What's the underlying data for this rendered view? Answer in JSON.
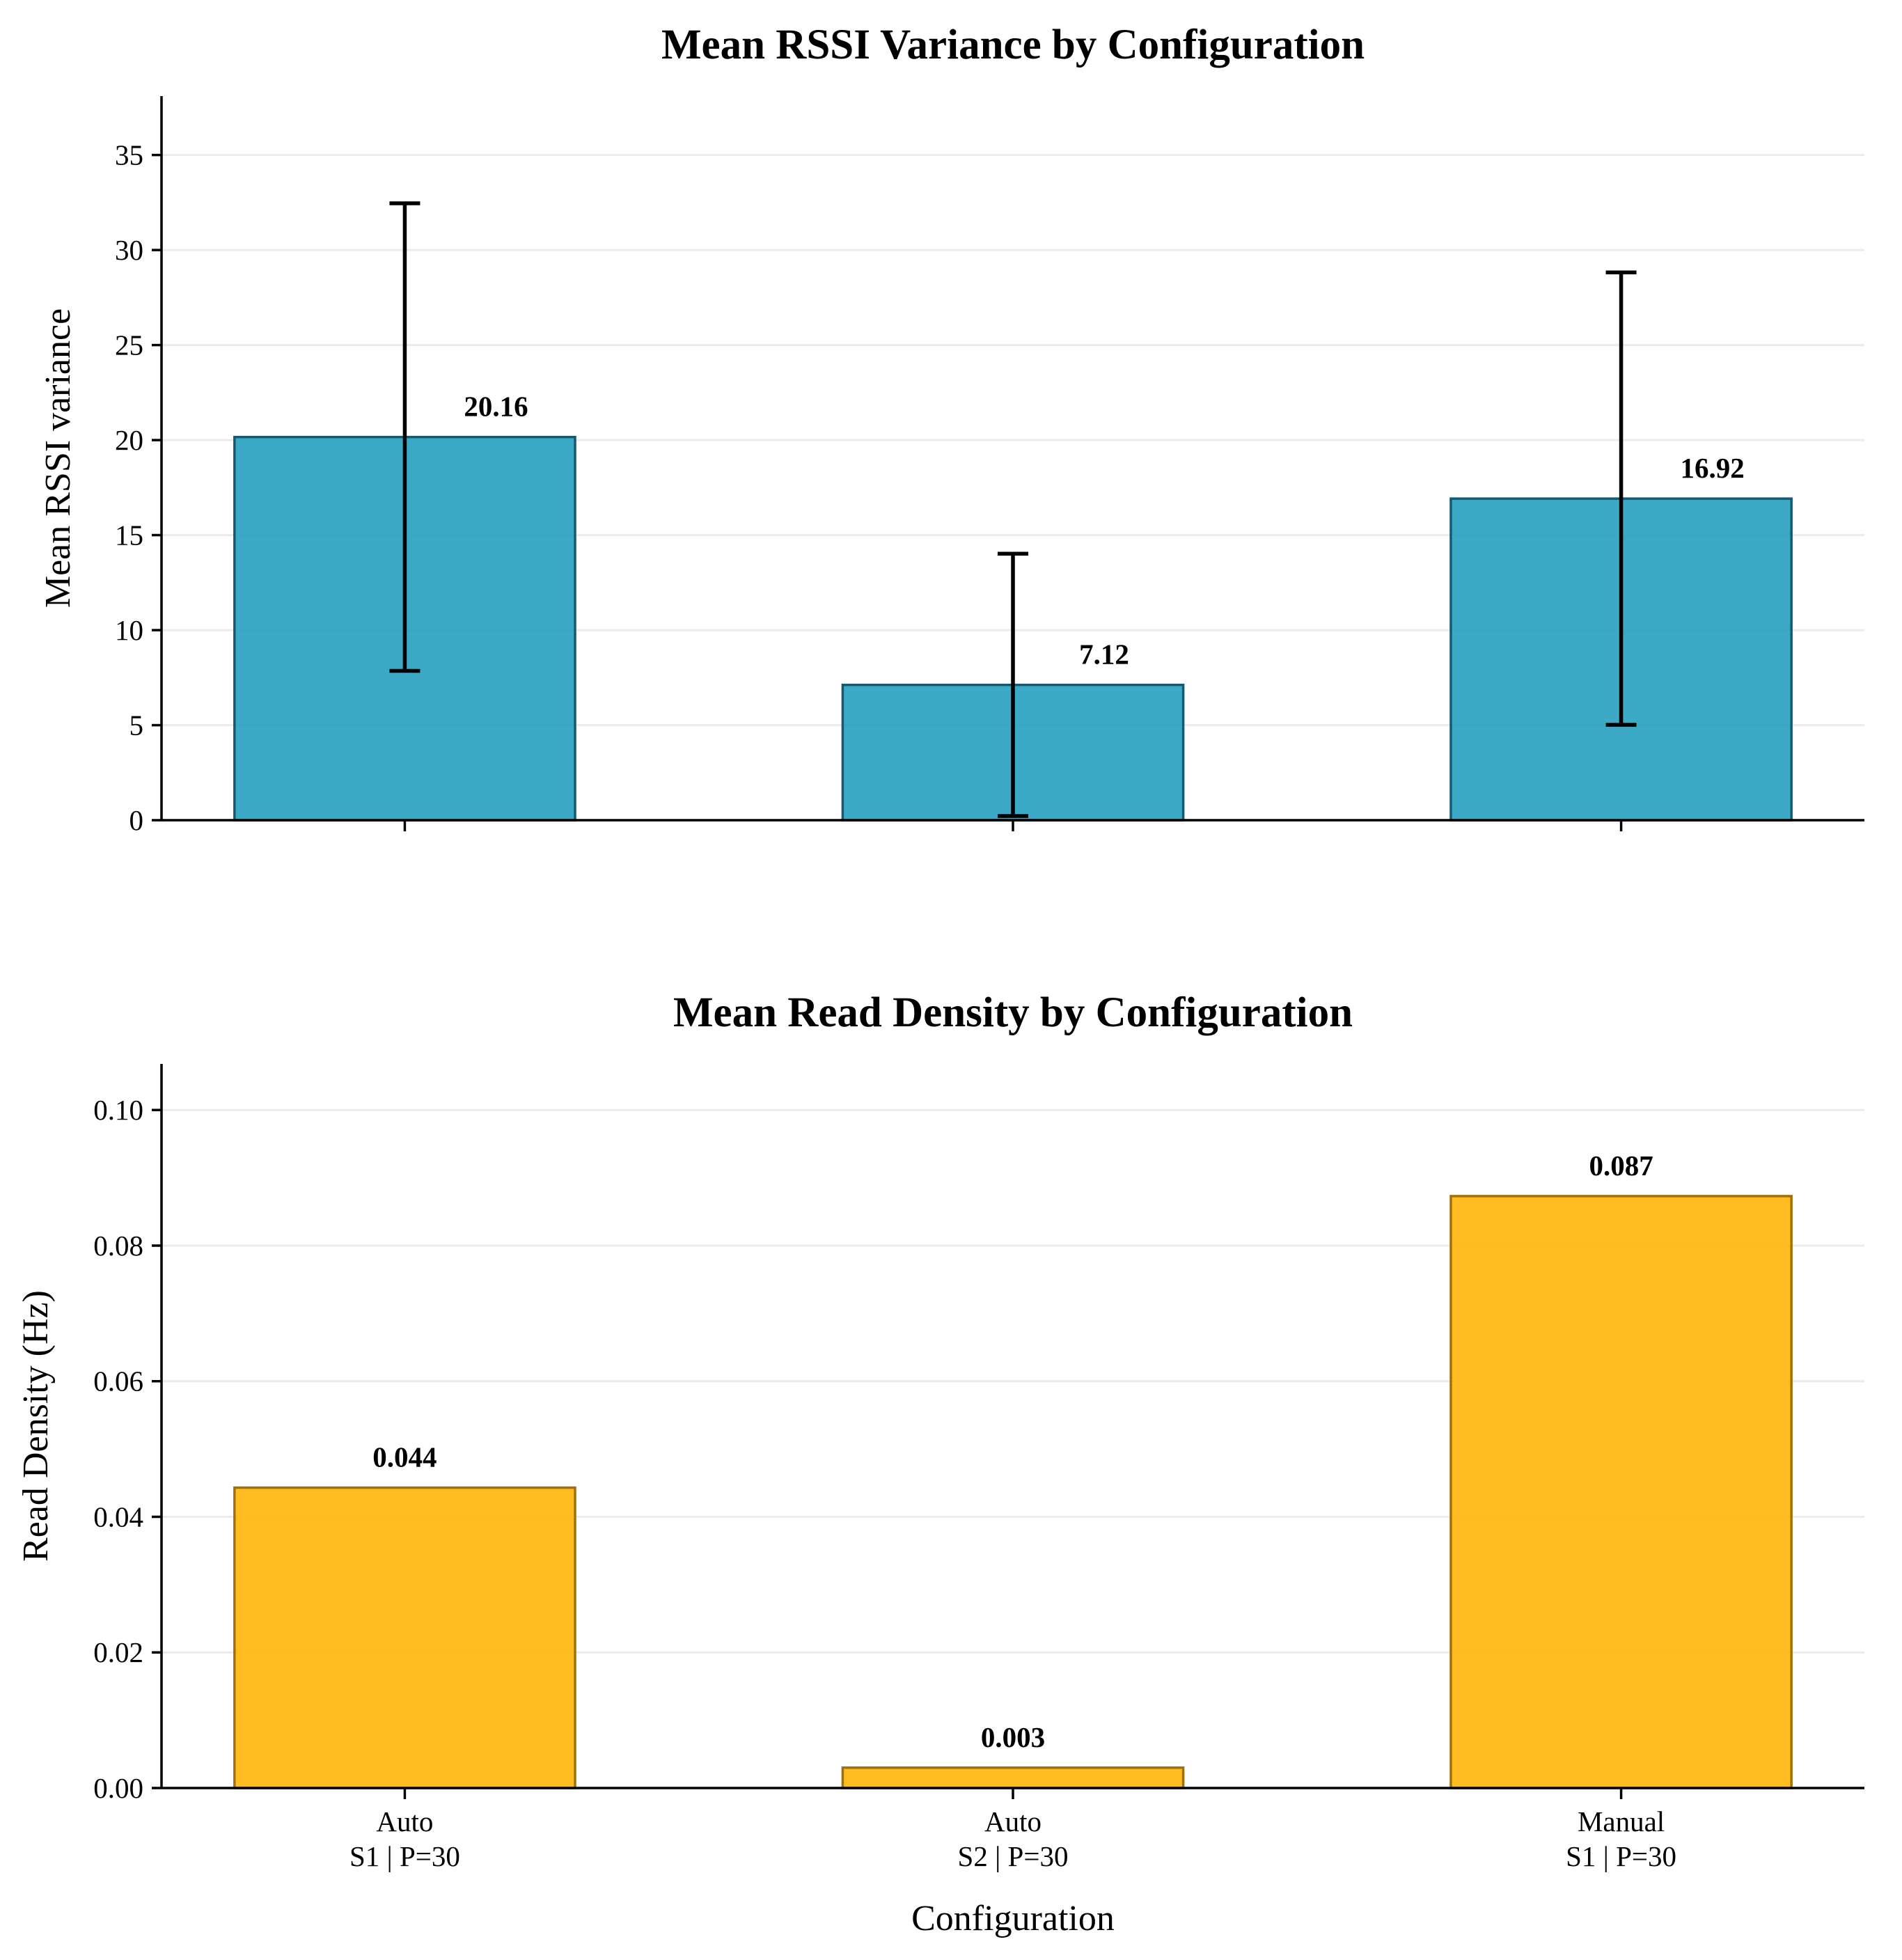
{
  "chart_data": [
    {
      "type": "bar",
      "title": "Mean RSSI Variance by Configuration",
      "xlabel": "",
      "ylabel": "Mean RSSI variance",
      "categories": [
        "Auto\nS1 | P=30",
        "Auto\nS2 | P=30",
        "Manual\nS1 | P=30"
      ],
      "show_category_labels": false,
      "values": [
        20.16,
        7.12,
        16.92
      ],
      "value_labels": [
        "20.16",
        "7.12",
        "16.92"
      ],
      "error": [
        12.3,
        6.9,
        11.9
      ],
      "ylim": [
        0,
        38.1
      ],
      "yticks": [
        0,
        5,
        10,
        15,
        20,
        25,
        30,
        35
      ],
      "ytick_labels": [
        "0",
        "5",
        "10",
        "15",
        "20",
        "25",
        "30",
        "35"
      ],
      "grid": true,
      "colors": {
        "fill": "#1f9dbd",
        "edge": "#155a70"
      }
    },
    {
      "type": "bar",
      "title": "Mean Read Density by Configuration",
      "xlabel": "Configuration",
      "ylabel": "Read Density (Hz)",
      "categories": [
        "Auto\nS1 | P=30",
        "Auto\nS2 | P=30",
        "Manual\nS1 | P=30"
      ],
      "show_category_labels": true,
      "values": [
        0.0443,
        0.003,
        0.0873
      ],
      "value_labels": [
        "0.044",
        "0.003",
        "0.087"
      ],
      "ylim": [
        0,
        0.1068
      ],
      "yticks": [
        0,
        0.02,
        0.04,
        0.06,
        0.08,
        0.1
      ],
      "ytick_labels": [
        "0.00",
        "0.02",
        "0.04",
        "0.06",
        "0.08",
        "0.10"
      ],
      "grid": true,
      "colors": {
        "fill": "#ffb300",
        "edge": "#a2700a"
      }
    }
  ]
}
